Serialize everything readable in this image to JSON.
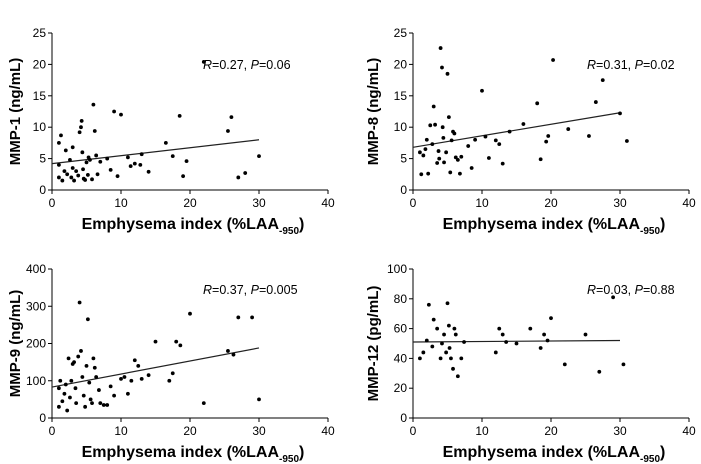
{
  "chart_data": [
    {
      "type": "scatter",
      "xlabel": "Emphysema index (%LAA",
      "xlabel_sub": "-950",
      "xlabel_end": ")",
      "ylabel": "MMP-1 (ng/mL)",
      "xlim": [
        0,
        40
      ],
      "ylim": [
        0,
        25
      ],
      "xticks": [
        "0",
        "10",
        "20",
        "30",
        "40"
      ],
      "yticks": [
        "0",
        "5",
        "10",
        "15",
        "20",
        "25"
      ],
      "annotation": {
        "r_label": "R",
        "r_value": "=0.27, ",
        "p_label": "P",
        "p_value": "=0.06"
      },
      "fit_line": {
        "x": [
          0,
          30
        ],
        "y": [
          4.2,
          8.0
        ]
      },
      "points": [
        [
          1,
          2
        ],
        [
          1,
          4
        ],
        [
          1,
          7.5
        ],
        [
          1.3,
          8.7
        ],
        [
          1.5,
          1.5
        ],
        [
          1.8,
          3
        ],
        [
          2,
          6.3
        ],
        [
          2.2,
          2.5
        ],
        [
          2.6,
          4.8
        ],
        [
          2.8,
          2
        ],
        [
          3,
          3.5
        ],
        [
          3,
          6.8
        ],
        [
          3.2,
          1.5
        ],
        [
          3.5,
          3
        ],
        [
          3.8,
          2.3
        ],
        [
          4,
          9.2
        ],
        [
          4.2,
          10
        ],
        [
          4.3,
          11
        ],
        [
          4.4,
          6
        ],
        [
          4.5,
          3.3
        ],
        [
          4.6,
          1.8
        ],
        [
          4.8,
          1.6
        ],
        [
          5,
          4.4
        ],
        [
          5.2,
          2.4
        ],
        [
          5.3,
          5.2
        ],
        [
          5.5,
          4.8
        ],
        [
          5.8,
          1.7
        ],
        [
          6,
          13.6
        ],
        [
          6.2,
          9.4
        ],
        [
          6.4,
          5.5
        ],
        [
          6.6,
          2.5
        ],
        [
          7,
          4.5
        ],
        [
          8,
          5
        ],
        [
          8.5,
          3.2
        ],
        [
          9,
          12.5
        ],
        [
          9.5,
          2.2
        ],
        [
          10,
          12
        ],
        [
          11,
          5.2
        ],
        [
          11.4,
          3.8
        ],
        [
          12,
          4.2
        ],
        [
          12.8,
          4
        ],
        [
          13,
          5.7
        ],
        [
          14,
          2.9
        ],
        [
          16.5,
          7.5
        ],
        [
          17.5,
          5.4
        ],
        [
          18.5,
          11.8
        ],
        [
          19,
          2.2
        ],
        [
          19.5,
          4.6
        ],
        [
          22,
          20.4
        ],
        [
          25.5,
          9.4
        ],
        [
          26,
          11.6
        ],
        [
          27,
          2
        ],
        [
          28,
          2.7
        ],
        [
          30,
          5.4
        ]
      ]
    },
    {
      "type": "scatter",
      "xlabel": "Emphysema index (%LAA",
      "xlabel_sub": "-950",
      "xlabel_end": ")",
      "ylabel": "MMP-8 (ng/mL)",
      "xlim": [
        0,
        40
      ],
      "ylim": [
        0,
        25
      ],
      "xticks": [
        "0",
        "10",
        "20",
        "30",
        "40"
      ],
      "yticks": [
        "0",
        "5",
        "10",
        "15",
        "20",
        "25"
      ],
      "annotation": {
        "r_label": "R",
        "r_value": "=0.31, ",
        "p_label": "P",
        "p_value": "=0.02"
      },
      "fit_line": {
        "x": [
          0,
          30
        ],
        "y": [
          6.8,
          12.3
        ]
      },
      "points": [
        [
          1,
          6
        ],
        [
          1.2,
          2.5
        ],
        [
          1.5,
          5.5
        ],
        [
          1.8,
          6.5
        ],
        [
          2,
          8
        ],
        [
          2.2,
          2.6
        ],
        [
          2.5,
          10.3
        ],
        [
          2.8,
          7.3
        ],
        [
          3,
          13.3
        ],
        [
          3.2,
          10.4
        ],
        [
          3.5,
          4.3
        ],
        [
          3.7,
          6.2
        ],
        [
          3.8,
          5
        ],
        [
          4,
          22.6
        ],
        [
          4.2,
          19.5
        ],
        [
          4.3,
          10
        ],
        [
          4.4,
          8.3
        ],
        [
          4.5,
          4.4
        ],
        [
          4.8,
          6
        ],
        [
          5,
          18.5
        ],
        [
          5.2,
          11.6
        ],
        [
          5.4,
          2.8
        ],
        [
          5.6,
          7.9
        ],
        [
          5.8,
          9.3
        ],
        [
          6,
          9
        ],
        [
          6.2,
          5.2
        ],
        [
          6.5,
          4.8
        ],
        [
          6.8,
          2.6
        ],
        [
          7,
          5.3
        ],
        [
          8,
          7
        ],
        [
          8.5,
          3.5
        ],
        [
          9,
          8
        ],
        [
          10,
          15.8
        ],
        [
          10.5,
          8.5
        ],
        [
          11,
          5.1
        ],
        [
          12,
          7.9
        ],
        [
          12.5,
          7.3
        ],
        [
          13,
          4.2
        ],
        [
          14,
          9.3
        ],
        [
          16,
          10.5
        ],
        [
          18,
          13.8
        ],
        [
          18.5,
          4.9
        ],
        [
          19.3,
          7.7
        ],
        [
          19.6,
          8.6
        ],
        [
          20.3,
          20.7
        ],
        [
          22.5,
          9.7
        ],
        [
          25.5,
          8.6
        ],
        [
          26.5,
          14
        ],
        [
          27.5,
          17.5
        ],
        [
          30,
          12.2
        ],
        [
          31,
          7.8
        ]
      ]
    },
    {
      "type": "scatter",
      "xlabel": "Emphysema index (%LAA",
      "xlabel_sub": "-950",
      "xlabel_end": ")",
      "ylabel": "MMP-9 (ng/mL)",
      "xlim": [
        0,
        40
      ],
      "ylim": [
        0,
        400
      ],
      "xticks": [
        "0",
        "10",
        "20",
        "30",
        "40"
      ],
      "yticks": [
        "0",
        "100",
        "200",
        "300",
        "400"
      ],
      "annotation": {
        "r_label": "R",
        "r_value": "=0.37, ",
        "p_label": "P",
        "p_value": "=0.005"
      },
      "fit_line": {
        "x": [
          0,
          30
        ],
        "y": [
          83,
          188
        ]
      },
      "points": [
        [
          1,
          30
        ],
        [
          1,
          80
        ],
        [
          1.2,
          100
        ],
        [
          1.5,
          45
        ],
        [
          1.8,
          65
        ],
        [
          2,
          90
        ],
        [
          2.2,
          20
        ],
        [
          2.4,
          160
        ],
        [
          2.6,
          55
        ],
        [
          2.8,
          100
        ],
        [
          3,
          145
        ],
        [
          3.2,
          150
        ],
        [
          3.4,
          80
        ],
        [
          3.5,
          40
        ],
        [
          3.8,
          165
        ],
        [
          4,
          310
        ],
        [
          4.2,
          180
        ],
        [
          4.4,
          110
        ],
        [
          4.6,
          60
        ],
        [
          4.8,
          30
        ],
        [
          5,
          140
        ],
        [
          5.2,
          265
        ],
        [
          5.4,
          95
        ],
        [
          5.6,
          50
        ],
        [
          5.8,
          40
        ],
        [
          6,
          160
        ],
        [
          6.2,
          135
        ],
        [
          6.4,
          110
        ],
        [
          6.8,
          75
        ],
        [
          7,
          40
        ],
        [
          7.5,
          35
        ],
        [
          8,
          35
        ],
        [
          8.5,
          85
        ],
        [
          9,
          60
        ],
        [
          10,
          105
        ],
        [
          10.5,
          110
        ],
        [
          11,
          65
        ],
        [
          11.5,
          100
        ],
        [
          12,
          155
        ],
        [
          12.5,
          140
        ],
        [
          13,
          105
        ],
        [
          14,
          115
        ],
        [
          15,
          205
        ],
        [
          17,
          100
        ],
        [
          17.5,
          120
        ],
        [
          18,
          205
        ],
        [
          18.6,
          195
        ],
        [
          20,
          280
        ],
        [
          22,
          40
        ],
        [
          25.5,
          180
        ],
        [
          26.3,
          170
        ],
        [
          27,
          270
        ],
        [
          29,
          270
        ],
        [
          30,
          50
        ]
      ]
    },
    {
      "type": "scatter",
      "xlabel": "Emphysema index (%LAA",
      "xlabel_sub": "-950",
      "xlabel_end": ")",
      "ylabel": "MMP-12 (pg/mL)",
      "xlim": [
        0,
        40
      ],
      "ylim": [
        0,
        100
      ],
      "xticks": [
        "0",
        "10",
        "20",
        "30",
        "40"
      ],
      "yticks": [
        "0",
        "20",
        "40",
        "60",
        "80",
        "100"
      ],
      "annotation": {
        "r_label": "R",
        "r_value": "=0.03, ",
        "p_label": "P",
        "p_value": "=0.88"
      },
      "fit_line": {
        "x": [
          0,
          30
        ],
        "y": [
          51,
          52
        ]
      },
      "points": [
        [
          1,
          40
        ],
        [
          1.5,
          44
        ],
        [
          2,
          52
        ],
        [
          2.3,
          76
        ],
        [
          2.8,
          48
        ],
        [
          3,
          66
        ],
        [
          3.5,
          60
        ],
        [
          4,
          40
        ],
        [
          4.2,
          50
        ],
        [
          4.5,
          56
        ],
        [
          4.8,
          44
        ],
        [
          5,
          77
        ],
        [
          5.2,
          62
        ],
        [
          5.3,
          47
        ],
        [
          5.5,
          40
        ],
        [
          5.8,
          33
        ],
        [
          6,
          60
        ],
        [
          6.2,
          56
        ],
        [
          6.5,
          28
        ],
        [
          7,
          40
        ],
        [
          7.4,
          51
        ],
        [
          12,
          44
        ],
        [
          12.5,
          60
        ],
        [
          13,
          56
        ],
        [
          13.5,
          51
        ],
        [
          15,
          50
        ],
        [
          17,
          60
        ],
        [
          18.5,
          47
        ],
        [
          19,
          56
        ],
        [
          19.5,
          52
        ],
        [
          20,
          67
        ],
        [
          22,
          36
        ],
        [
          25,
          56
        ],
        [
          27,
          31
        ],
        [
          29,
          81
        ],
        [
          30.5,
          36
        ]
      ]
    }
  ]
}
